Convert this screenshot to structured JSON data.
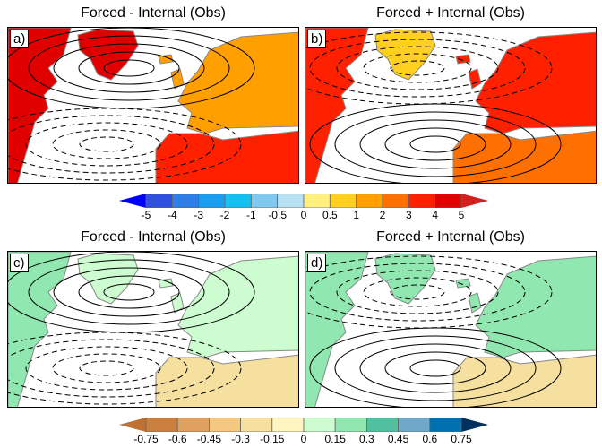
{
  "panels": [
    {
      "label": "a)",
      "title": "Forced - Internal (Obs)",
      "colors": {
        "na": "#e00000",
        "greenland": "#e00000",
        "europe": "#ffa000",
        "africa": "#ff2000"
      },
      "high": "north",
      "low": "south"
    },
    {
      "label": "b)",
      "title": "Forced + Internal (Obs)",
      "colors": {
        "na": "#ff2000",
        "greenland": "#ffd020",
        "europe": "#ff2000",
        "africa": "#ff7000"
      },
      "high": "south",
      "low": "north"
    },
    {
      "label": "c)",
      "title": "Forced - Internal (Obs)",
      "colors": {
        "na": "#90e8b0",
        "greenland": "#ccfcd0",
        "europe": "#ccfcd0",
        "africa": "#f5e0a0"
      },
      "high": "north",
      "low": "south"
    },
    {
      "label": "d)",
      "title": "Forced + Internal (Obs)",
      "colors": {
        "na": "#90e8b0",
        "greenland": "#90e8b0",
        "europe": "#90e8b0",
        "africa": "#f5e0a0"
      },
      "high": "south",
      "low": "north"
    }
  ],
  "colorbars": [
    {
      "labels": [
        "-5",
        "-4",
        "-3",
        "-2",
        "-1",
        "-0.5",
        "0",
        "0.5",
        "1",
        "2",
        "3",
        "4",
        "5"
      ],
      "low_end": "#0000ff",
      "high_end": "#d02020",
      "colors": [
        "#3050e0",
        "#2f7ee8",
        "#1a9ef0",
        "#14c0f0",
        "#80c8f0",
        "#b8e2f4",
        "#fff080",
        "#ffd020",
        "#ffa000",
        "#ff7000",
        "#ff2000",
        "#e00000"
      ]
    },
    {
      "labels": [
        "-0.75",
        "-0.6",
        "-0.45",
        "-0.3",
        "-0.15",
        "0",
        "0.15",
        "0.3",
        "0.45",
        "0.6",
        "0.75"
      ],
      "low_end": "#c07030",
      "high_end": "#003060",
      "colors": [
        "#cc8040",
        "#e0a060",
        "#f5c880",
        "#f5e0a0",
        "#fff5c0",
        "#ccfcd0",
        "#90e8b0",
        "#50c0a0",
        "#70a8c8",
        "#0070b0"
      ]
    }
  ]
}
